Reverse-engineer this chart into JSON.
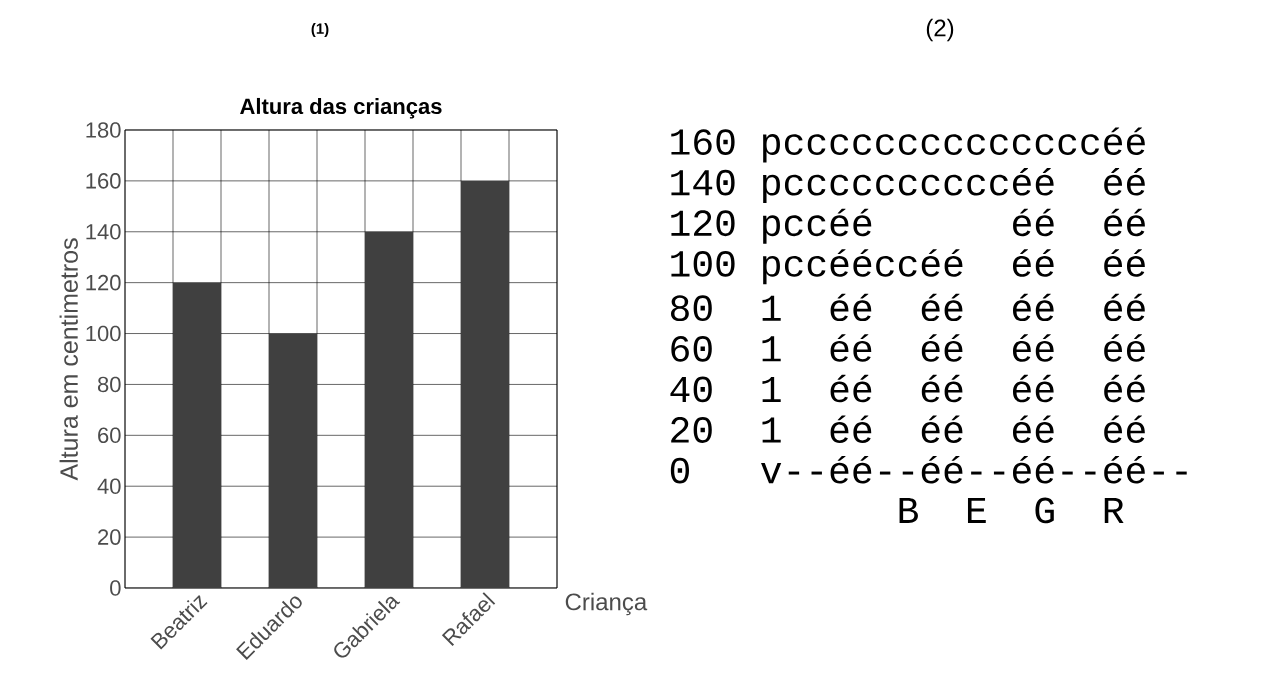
{
  "chart_data": [
    {
      "type": "bar",
      "title": "Altura das crianças",
      "annotations": [
        "(1)"
      ],
      "xlabel": "Criança",
      "ylabel": "Altura em centimetros",
      "categories": [
        "Beatriz",
        "Eduardo",
        "Gabriela",
        "Rafael"
      ],
      "values": [
        120,
        100,
        140,
        160
      ],
      "color": "#404040",
      "ylim": [
        0,
        180
      ],
      "yticks": [
        0,
        20,
        40,
        60,
        80,
        100,
        120,
        140,
        160,
        180
      ],
      "grid": true
    },
    {
      "type": "other",
      "title": "(2)",
      "annotations": [
        "160 pccccccccccccccéé",
        "140 pccccccccccéé  éé",
        "120 pccéé      éé  éé",
        "100 pccééccéé  éé  éé",
        "80  1  éé  éé  éé  éé",
        "60  1  éé  éé  éé  éé",
        "40  1  éé  éé  éé  éé",
        "20  1  éé  éé  éé  éé",
        "0   v--éé--éé--éé--éé--",
        "          B  E  G  R"
      ]
    }
  ]
}
